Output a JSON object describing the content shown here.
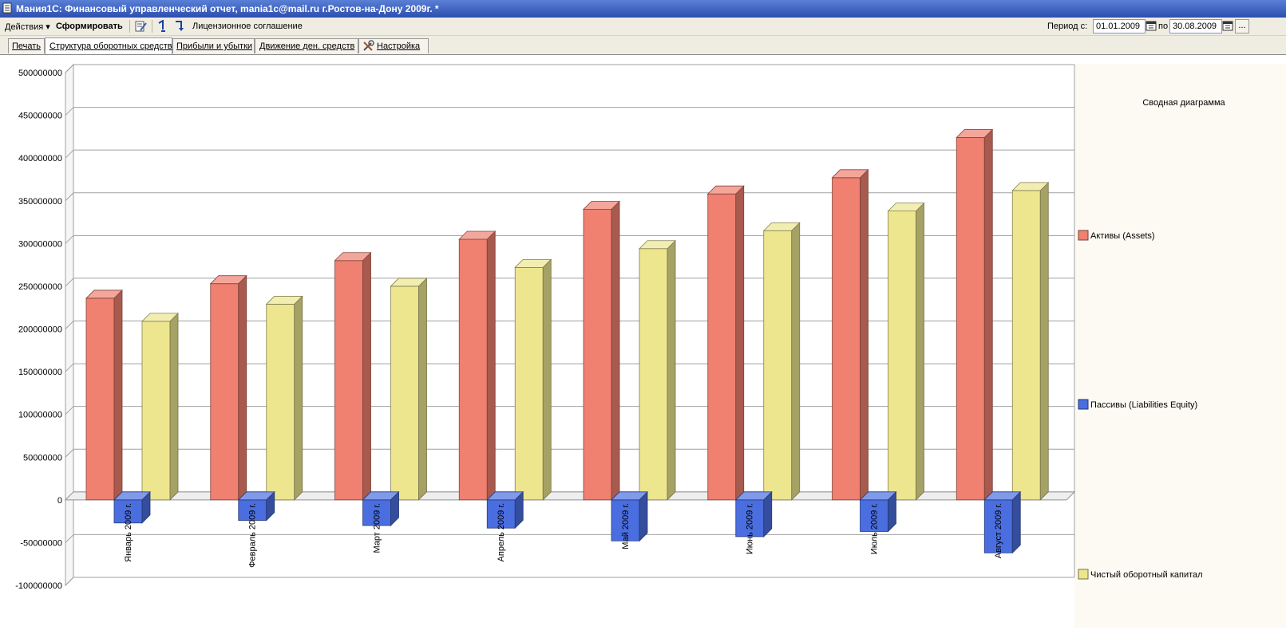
{
  "window": {
    "title": "Мания1С: Финансовый управленческий отчет, mania1c@mail.ru г.Ростов-на-Дону 2009г. *"
  },
  "toolbar": {
    "actions_label": "Действия",
    "generate_label": "Сформировать",
    "license_label": "Лицензионное соглашение",
    "period_from_label": "Период с:",
    "period_from": "01.01.2009",
    "period_to_label": "по",
    "period_to": "30.08.2009",
    "more_label": "..."
  },
  "tabs": [
    {
      "label": "Печать"
    },
    {
      "label": "Структура оборотных средств"
    },
    {
      "label": "Прибыли и убытки"
    },
    {
      "label": "Движение ден. средств"
    },
    {
      "label": "Настройка"
    }
  ],
  "chart_data": {
    "type": "bar",
    "title": "Сводная диаграмма",
    "categories": [
      "Январь 2009 г.",
      "Февраль 2009 г.",
      "Март 2009 г.",
      "Апрель 2009 г.",
      "Май 2009 г.",
      "Июнь 2009 г.",
      "Июль 2009 г.",
      "Август 2009 г."
    ],
    "series": [
      {
        "name": "Активы (Assets)",
        "color": "#f08070",
        "values": [
          236000000,
          253000000,
          280000000,
          305000000,
          340000000,
          358000000,
          377000000,
          424000000
        ]
      },
      {
        "name": "Пассивы (Liabilities Equity)",
        "color": "#4a6ee0",
        "values": [
          -27000000,
          -24000000,
          -30000000,
          -33000000,
          -48000000,
          -43000000,
          -37000000,
          -62000000
        ]
      },
      {
        "name": "Чистый оборотный капитал",
        "color": "#ede68f",
        "values": [
          209000000,
          229000000,
          250000000,
          272000000,
          294000000,
          315000000,
          338000000,
          362000000
        ]
      }
    ],
    "ylim": [
      -100000000,
      500000000
    ],
    "yticks": [
      "500000000",
      "450000000",
      "400000000",
      "350000000",
      "300000000",
      "250000000",
      "200000000",
      "150000000",
      "100000000",
      "50000000",
      "0",
      "-50000000",
      "-100000000"
    ],
    "grid": true,
    "legend_position": "right"
  }
}
